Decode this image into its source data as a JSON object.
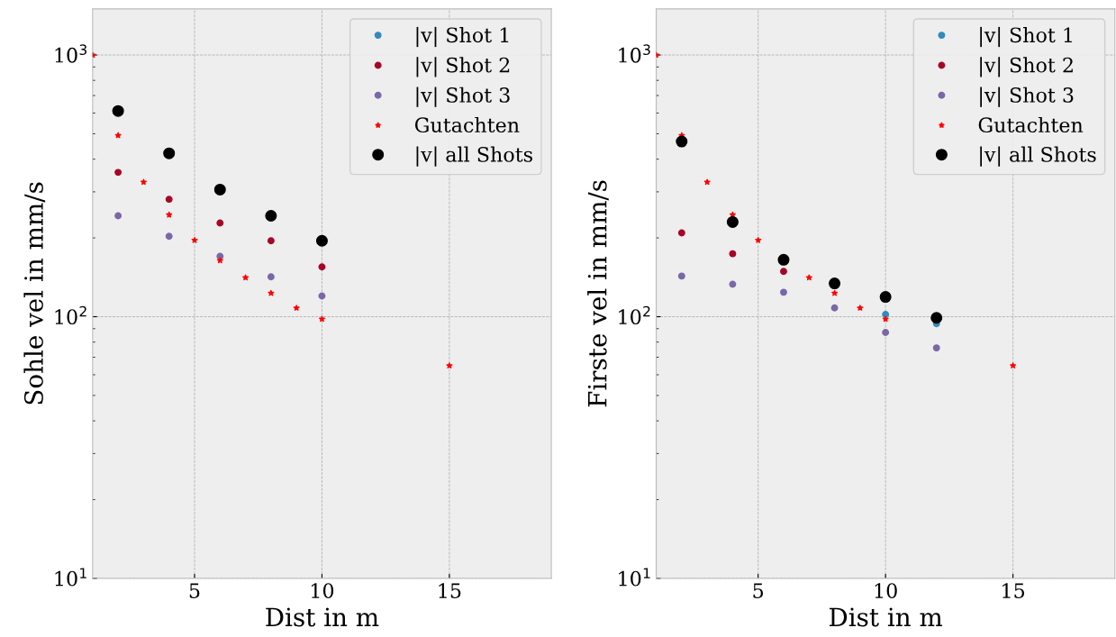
{
  "chart_data": [
    {
      "type": "scatter",
      "xlabel": "Dist in m",
      "ylabel": "Sohle vel in mm/s",
      "log": "y",
      "grid": true,
      "legend": "top right",
      "xlim": [
        1,
        19
      ],
      "xticks": [
        5,
        10,
        15
      ],
      "ylim": [
        10,
        1500
      ],
      "yticks": [
        {
          "value": 10,
          "label": "10$^{1}$"
        },
        {
          "value": 100,
          "label": "10$^{2}$"
        },
        {
          "value": 1000,
          "label": "10$^{3}$"
        }
      ],
      "series": [
        {
          "name": "|v| Shot 1",
          "color": "#348abd",
          "marker": "circle"
        },
        {
          "name": "|v| Shot 2",
          "color": "#a60628",
          "marker": "circle",
          "x": [
            2,
            4,
            6,
            8,
            10
          ],
          "values": [
            356,
            281,
            228,
            195,
            155
          ]
        },
        {
          "name": "|v| Shot 3",
          "color": "#7a68a6",
          "marker": "circle",
          "x": [
            2,
            4,
            6,
            8,
            10
          ],
          "values": [
            243,
            203,
            170,
            142,
            120
          ]
        },
        {
          "name": "Gutachten",
          "color": "#ff0000",
          "marker": "star",
          "x": [
            1,
            2,
            3,
            4,
            5,
            6,
            7,
            8,
            9,
            10,
            15
          ],
          "values": [
            1000,
            493,
            327,
            245,
            196,
            164,
            141,
            123,
            108,
            98,
            65
          ]
        },
        {
          "name": "|v| all Shots",
          "color": "#000000",
          "marker": "circle",
          "x": [
            2,
            4,
            6,
            8,
            10
          ],
          "values": [
            611,
            421,
            306,
            243,
            195
          ]
        }
      ]
    },
    {
      "type": "scatter",
      "xlabel": "Dist in m",
      "ylabel": "Firste vel in mm/s",
      "log": "y",
      "grid": true,
      "legend": "top right",
      "xlim": [
        1,
        19
      ],
      "xticks": [
        5,
        10,
        15
      ],
      "ylim": [
        10,
        1500
      ],
      "yticks": [
        {
          "value": 10,
          "label": "10$^{1}$"
        },
        {
          "value": 100,
          "label": "10$^{2}$"
        },
        {
          "value": 1000,
          "label": "10$^{3}$"
        }
      ],
      "series": [
        {
          "name": "|v| Shot 1",
          "color": "#348abd",
          "marker": "circle",
          "x": [
            10,
            12
          ],
          "values": [
            102,
            94
          ]
        },
        {
          "name": "|v| Shot 2",
          "color": "#a60628",
          "marker": "circle",
          "x": [
            2,
            4,
            6
          ],
          "values": [
            209,
            174,
            149
          ]
        },
        {
          "name": "|v| Shot 3",
          "color": "#7a68a6",
          "marker": "circle",
          "x": [
            2,
            4,
            6,
            8,
            10,
            12
          ],
          "values": [
            143,
            133,
            124,
            108,
            87,
            76
          ]
        },
        {
          "name": "Gutachten",
          "color": "#ff0000",
          "marker": "star",
          "x": [
            1,
            2,
            3,
            4,
            5,
            7,
            8,
            9,
            10,
            15
          ],
          "values": [
            1000,
            493,
            327,
            245,
            196,
            141,
            123,
            108,
            98,
            65
          ]
        },
        {
          "name": "|v| all Shots",
          "color": "#000000",
          "marker": "circle",
          "x": [
            2,
            4,
            6,
            8,
            10,
            12
          ],
          "values": [
            467,
            230,
            165,
            134,
            119,
            99
          ]
        }
      ]
    }
  ]
}
